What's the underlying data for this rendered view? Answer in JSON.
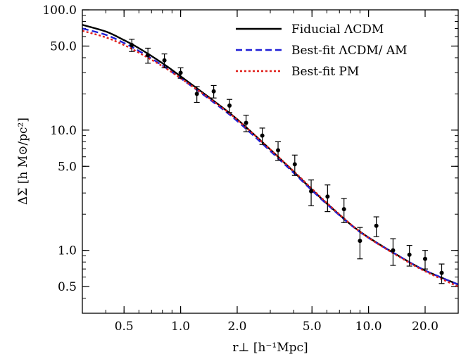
{
  "chart_data": {
    "type": "line",
    "xlabel": "r⊥ [h⁻¹Mpc]",
    "ylabel": "ΔΣ [h M⊙/pc²]",
    "xscale": "log",
    "yscale": "log",
    "xlim": [
      0.3,
      30
    ],
    "ylim": [
      0.3,
      100
    ],
    "xticks": [
      0.5,
      1.0,
      2.0,
      5.0,
      10.0,
      20.0
    ],
    "xtick_labels": [
      "0.5",
      "1.0",
      "2.0",
      "5.0",
      "10.0",
      "20.0"
    ],
    "yticks": [
      0.5,
      1.0,
      5.0,
      10.0,
      50.0,
      100.0
    ],
    "ytick_labels": [
      "0.5",
      "1.0",
      "5.0",
      "10.0",
      "50.0",
      "100.0"
    ],
    "legend_position": "top-right",
    "series": [
      {
        "name": "Fiducial ΛCDM",
        "style": "solid",
        "color": "#000000",
        "x": [
          0.3,
          0.4,
          0.5,
          0.6,
          0.8,
          1.0,
          1.5,
          2.0,
          3.0,
          4.0,
          5.0,
          6.0,
          8.0,
          10.0,
          15.0,
          20.0,
          30.0
        ],
        "y": [
          75,
          66,
          56,
          48,
          36,
          28,
          17.5,
          12.3,
          6.9,
          4.5,
          3.2,
          2.45,
          1.65,
          1.28,
          0.87,
          0.68,
          0.52
        ]
      },
      {
        "name": "Best-fit ΛCDM/ AM",
        "style": "dashed",
        "color": "#1f1fd6",
        "x": [
          0.3,
          0.4,
          0.5,
          0.6,
          0.8,
          1.0,
          1.5,
          2.0,
          3.0,
          4.0,
          5.0,
          6.0,
          8.0,
          10.0,
          15.0,
          20.0,
          30.0
        ],
        "y": [
          70,
          62,
          53,
          45.5,
          34.5,
          27,
          17,
          11.9,
          6.7,
          4.4,
          3.15,
          2.42,
          1.64,
          1.27,
          0.87,
          0.68,
          0.52
        ]
      },
      {
        "name": "Best-fit PM",
        "style": "dotted",
        "color": "#e0201b",
        "x": [
          0.3,
          0.4,
          0.5,
          0.6,
          0.8,
          1.0,
          1.5,
          2.0,
          3.0,
          4.0,
          5.0,
          6.0,
          8.0,
          10.0,
          15.0,
          20.0,
          30.0
        ],
        "y": [
          67,
          59,
          51,
          44,
          34,
          27,
          17.3,
          12.2,
          6.9,
          4.55,
          3.25,
          2.48,
          1.66,
          1.27,
          0.86,
          0.67,
          0.5
        ]
      }
    ],
    "points": {
      "x": [
        0.55,
        0.67,
        0.82,
        1.0,
        1.22,
        1.5,
        1.82,
        2.23,
        2.72,
        3.3,
        4.05,
        4.95,
        6.05,
        7.4,
        9.0,
        11.0,
        13.5,
        16.5,
        20.0,
        24.5
      ],
      "y": [
        51,
        42,
        38,
        30,
        20,
        21,
        16,
        11.5,
        9,
        6.8,
        5.2,
        3.1,
        2.8,
        2.2,
        1.2,
        1.6,
        1.0,
        0.92,
        0.85,
        0.65
      ],
      "yerr": [
        6,
        6,
        5,
        3,
        3,
        2.5,
        2,
        1.8,
        1.4,
        1.2,
        1.0,
        0.75,
        0.7,
        0.5,
        0.35,
        0.3,
        0.25,
        0.18,
        0.15,
        0.12
      ]
    }
  }
}
